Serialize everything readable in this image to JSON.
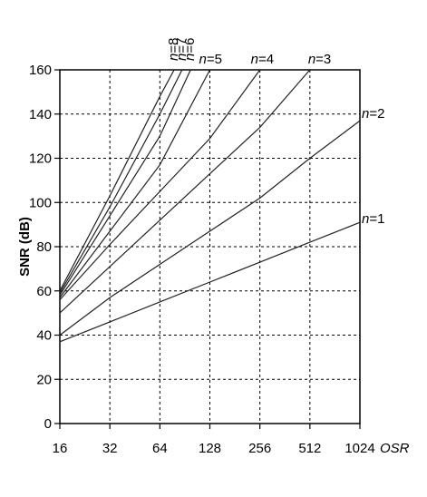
{
  "chart_data": {
    "type": "line",
    "title": "",
    "xlabel": "OSR",
    "ylabel": "SNR (dB)",
    "xscale": "log2",
    "xlim": [
      16,
      1024
    ],
    "ylim": [
      0,
      160
    ],
    "grid": true,
    "x_ticks": [
      "16",
      "32",
      "64",
      "128",
      "256",
      "512",
      "1024"
    ],
    "y_ticks": [
      "0",
      "20",
      "40",
      "60",
      "80",
      "100",
      "120",
      "140",
      "160"
    ],
    "series": [
      {
        "name": "n=1",
        "label_parts": [
          "n",
          "=1"
        ],
        "x": [
          16,
          32,
          64,
          128,
          256,
          512,
          1024
        ],
        "values": [
          37,
          46,
          55,
          64,
          73,
          82,
          91
        ]
      },
      {
        "name": "n=2",
        "label_parts": [
          "n",
          "=2"
        ],
        "x": [
          16,
          32,
          64,
          128,
          256,
          512,
          1024
        ],
        "values": [
          40,
          57,
          72,
          87,
          102,
          120,
          137
        ]
      },
      {
        "name": "n=3",
        "label_parts": [
          "n",
          "=3"
        ],
        "x": [
          16,
          32,
          64,
          128,
          256,
          512
        ],
        "values": [
          50,
          71,
          92,
          113,
          134,
          160
        ]
      },
      {
        "name": "n=4",
        "label_parts": [
          "n",
          "=4"
        ],
        "x": [
          16,
          32,
          64,
          128,
          256
        ],
        "values": [
          56,
          81,
          105,
          129,
          160
        ]
      },
      {
        "name": "n=5",
        "label_parts": [
          "n",
          "=5"
        ],
        "x": [
          16,
          32,
          64,
          128
        ],
        "values": [
          57,
          87,
          117,
          160
        ]
      },
      {
        "name": "n=6",
        "label_parts": [
          "n",
          "=6"
        ],
        "x": [
          16,
          32,
          64,
          98
        ],
        "values": [
          58,
          94,
          130,
          160
        ]
      },
      {
        "name": "n=7",
        "label_parts": [
          "n",
          "=7"
        ],
        "x": [
          16,
          32,
          64,
          87
        ],
        "values": [
          59,
          98,
          140,
          160
        ]
      },
      {
        "name": "n=8",
        "label_parts": [
          "n",
          "=8"
        ],
        "x": [
          16,
          32,
          64,
          78
        ],
        "values": [
          60,
          103,
          148,
          160
        ]
      }
    ]
  }
}
